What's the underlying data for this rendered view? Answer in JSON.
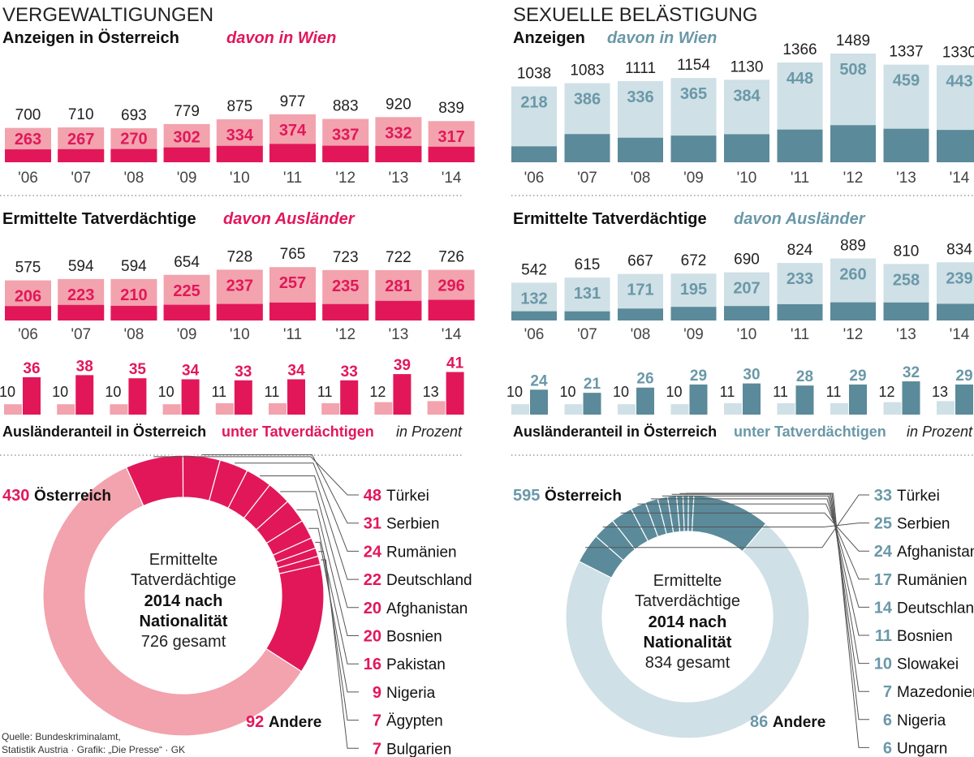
{
  "source_lines": [
    "Quelle: Bundeskriminalamt,",
    "Statistik Austria · Grafik: „Die Presse“ · GK"
  ],
  "chart_data": [
    {
      "type": "bar",
      "panel_title": "VERGEWALTIGUNGEN",
      "title": "Anzeigen in Österreich",
      "subtitle": "davon in Wien",
      "colors": {
        "light": "#f2a3ad",
        "dark": "#e2175a",
        "text": "#e2175a"
      },
      "categories": [
        "'06",
        "'07",
        "'08",
        "'09",
        "'10",
        "'11",
        "'12",
        "'13",
        "'14"
      ],
      "series": [
        {
          "name": "Anzeigen in Österreich",
          "values": [
            700,
            710,
            693,
            779,
            875,
            977,
            883,
            920,
            839
          ]
        },
        {
          "name": "davon in Wien",
          "values": [
            263,
            267,
            270,
            302,
            334,
            374,
            337,
            332,
            317
          ]
        }
      ]
    },
    {
      "type": "bar",
      "panel_title": "VERGEWALTIGUNGEN",
      "title": "Ermittelte Tatverdächtige",
      "subtitle": "davon Ausländer",
      "colors": {
        "light": "#f2a3ad",
        "dark": "#e2175a",
        "text": "#e2175a"
      },
      "categories": [
        "'06",
        "'07",
        "'08",
        "'09",
        "'10",
        "'11",
        "'12",
        "'13",
        "'14"
      ],
      "series": [
        {
          "name": "Ermittelte Tatverdächtige",
          "values": [
            575,
            594,
            594,
            654,
            728,
            765,
            723,
            722,
            726
          ]
        },
        {
          "name": "davon Ausländer",
          "values": [
            206,
            223,
            210,
            225,
            237,
            257,
            235,
            281,
            296
          ]
        }
      ]
    },
    {
      "type": "bar",
      "panel_title": "VERGEWALTIGUNGEN",
      "legend_left": "Ausländeranteil in Österreich",
      "legend_mid": "unter Tatverdächtigen",
      "legend_right": "in Prozent",
      "colors": {
        "light": "#f2a3ad",
        "dark": "#e2175a",
        "text": "#e2175a"
      },
      "categories": [
        "'06",
        "'07",
        "'08",
        "'09",
        "'10",
        "'11",
        "'12",
        "'13",
        "'14"
      ],
      "series": [
        {
          "name": "Ausländeranteil in Österreich",
          "values": [
            10,
            10,
            10,
            10,
            11,
            11,
            11,
            12,
            13
          ]
        },
        {
          "name": "unter Tatverdächtigen",
          "values": [
            36,
            38,
            35,
            34,
            33,
            34,
            33,
            39,
            41
          ]
        }
      ]
    },
    {
      "type": "pie",
      "panel_title": "VERGEWALTIGUNGEN",
      "center_lines": [
        "Ermittelte",
        "Tatverdächtige",
        "2014 nach",
        "Nationalität",
        "726 gesamt"
      ],
      "colors": {
        "main": "#f2a3ad",
        "slice": "#e2175a",
        "text": "#e2175a"
      },
      "main": {
        "label": "Österreich",
        "value": 430
      },
      "other": {
        "label": "Andere",
        "value": 92
      },
      "slices": [
        {
          "label": "Türkei",
          "value": 48
        },
        {
          "label": "Serbien",
          "value": 31
        },
        {
          "label": "Rumänien",
          "value": 24
        },
        {
          "label": "Deutschland",
          "value": 22
        },
        {
          "label": "Afghanistan",
          "value": 20
        },
        {
          "label": "Bosnien",
          "value": 20
        },
        {
          "label": "Pakistan",
          "value": 16
        },
        {
          "label": "Nigeria",
          "value": 9
        },
        {
          "label": "Ägypten",
          "value": 7
        },
        {
          "label": "Bulgarien",
          "value": 7
        }
      ]
    },
    {
      "type": "bar",
      "panel_title": "SEXUELLE BELÄSTIGUNG",
      "title": "Anzeigen",
      "subtitle": "davon in Wien",
      "colors": {
        "light": "#cfe0e6",
        "dark": "#5b8a9a",
        "text": "#6a98a8"
      },
      "categories": [
        "'06",
        "'07",
        "'08",
        "'09",
        "'10",
        "'11",
        "'12",
        "'13",
        "'14"
      ],
      "series": [
        {
          "name": "Anzeigen",
          "values": [
            1038,
            1083,
            1111,
            1154,
            1130,
            1366,
            1489,
            1337,
            1330
          ]
        },
        {
          "name": "davon in Wien",
          "values": [
            218,
            386,
            336,
            365,
            384,
            448,
            508,
            459,
            443
          ]
        }
      ]
    },
    {
      "type": "bar",
      "panel_title": "SEXUELLE BELÄSTIGUNG",
      "title": "Ermittelte Tatverdächtige",
      "subtitle": "davon Ausländer",
      "colors": {
        "light": "#cfe0e6",
        "dark": "#5b8a9a",
        "text": "#6a98a8"
      },
      "categories": [
        "'06",
        "'07",
        "'08",
        "'09",
        "'10",
        "'11",
        "'12",
        "'13",
        "'14"
      ],
      "series": [
        {
          "name": "Ermittelte Tatverdächtige",
          "values": [
            542,
            615,
            667,
            672,
            690,
            824,
            889,
            810,
            834
          ]
        },
        {
          "name": "davon Ausländer",
          "values": [
            132,
            131,
            171,
            195,
            207,
            233,
            260,
            258,
            239
          ]
        }
      ]
    },
    {
      "type": "bar",
      "panel_title": "SEXUELLE BELÄSTIGUNG",
      "legend_left": "Ausländeranteil in Österreich",
      "legend_mid": "unter Tatverdächtigen",
      "legend_right": "in Prozent",
      "colors": {
        "light": "#cfe0e6",
        "dark": "#5b8a9a",
        "text": "#6a98a8"
      },
      "categories": [
        "'06",
        "'07",
        "'08",
        "'09",
        "'10",
        "'11",
        "'12",
        "'13",
        "'14"
      ],
      "series": [
        {
          "name": "Ausländeranteil in Österreich",
          "values": [
            10,
            10,
            10,
            10,
            11,
            11,
            11,
            12,
            13
          ]
        },
        {
          "name": "unter Tatverdächtigen",
          "values": [
            24,
            21,
            26,
            29,
            30,
            28,
            29,
            32,
            29
          ]
        }
      ]
    },
    {
      "type": "pie",
      "panel_title": "SEXUELLE BELÄSTIGUNG",
      "center_lines": [
        "Ermittelte",
        "Tatverdächtige",
        "2014 nach",
        "Nationalität",
        "834 gesamt"
      ],
      "colors": {
        "main": "#cfe0e6",
        "slice": "#5b8a9a",
        "text": "#6a98a8"
      },
      "main": {
        "label": "Österreich",
        "value": 595
      },
      "other": {
        "label": "Andere",
        "value": 86
      },
      "slices": [
        {
          "label": "Türkei",
          "value": 33
        },
        {
          "label": "Serbien",
          "value": 25
        },
        {
          "label": "Afghanistan",
          "value": 24
        },
        {
          "label": "Rumänien",
          "value": 17
        },
        {
          "label": "Deutschland",
          "value": 14
        },
        {
          "label": "Bosnien",
          "value": 11
        },
        {
          "label": "Slowakei",
          "value": 10
        },
        {
          "label": "Mazedonien",
          "value": 7
        },
        {
          "label": "Nigeria",
          "value": 6
        },
        {
          "label": "Ungarn",
          "value": 6
        }
      ]
    }
  ]
}
